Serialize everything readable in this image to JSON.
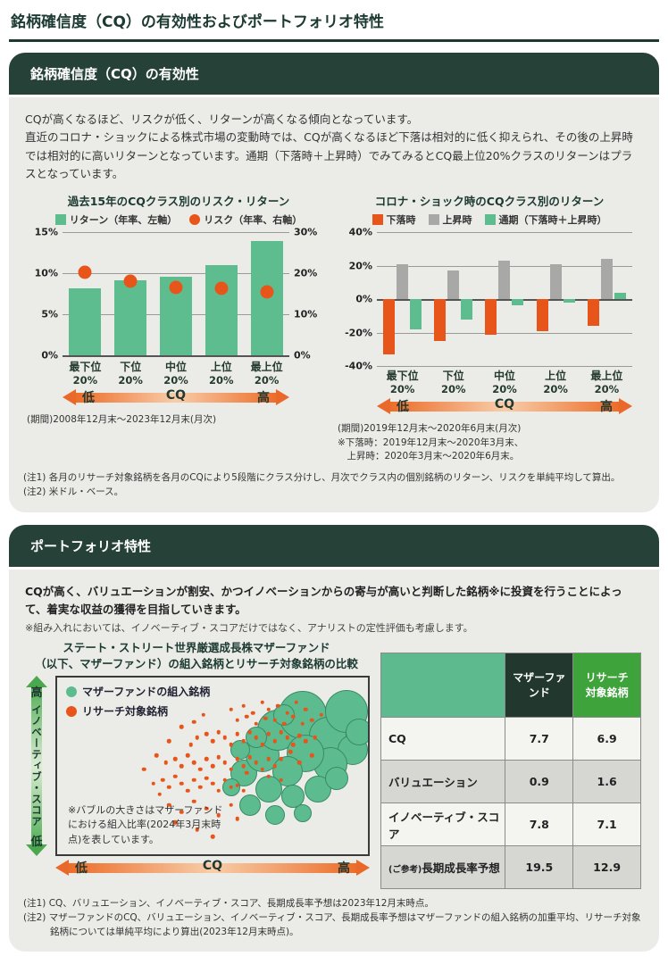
{
  "doc_title": "銘柄確信度（CQ）の有効性およびポートフォリオ特性",
  "colors": {
    "dark_green": "#264238",
    "title_green": "#1c3a31",
    "body_gray": "#ebece8",
    "bar_green": "#5dbd8e",
    "orange": "#e8551a",
    "bar_gray": "#a8a8a6",
    "table_head_left": "#5cba8e",
    "table_head_dark": "#22382e",
    "table_head_bright": "#3fa33c"
  },
  "cq_arrow": {
    "low": "低",
    "center": "CQ",
    "high": "高"
  },
  "innov_axis": {
    "high": "高",
    "label": "イノベーティブ・スコア",
    "low": "低"
  },
  "section1": {
    "header": "銘柄確信度（CQ）の有効性",
    "intro": "CQが高くなるほど、リスクが低く、リターンが高くなる傾向となっています。\n直近のコロナ・ショックによる株式市場の変動時では、CQが高くなるほど下落は相対的に低く抑えられ、その後の上昇時では相対的に高いリターンとなっています。通期（下落時＋上昇時）でみてみるとCQ最上位20%クラスのリターンはプラスとなっています。",
    "note1": "(注1) 各月のリサーチ対象銘柄を各月のCQにより5段階にクラス分けし、月次でクラス内の個別銘柄のリターン、リスクを単純平均して算出。",
    "note2": "(注2) 米ドル・ベース。"
  },
  "section2": {
    "header": "ポートフォリオ特性",
    "intro": "CQが高く、バリュエーションが割安、かつイノベーションからの寄与が高いと判断した銘柄※に投資を行うことによって、着実な収益の獲得を目指していきます。",
    "subnote": "※組み入れにおいては、イノベーティブ・スコアだけではなく、アナリストの定性評価も考慮します。",
    "note1": "(注1) CQ、バリュエーション、イノベーティブ・スコア、長期成長率予想は2023年12月末時点。",
    "note2": "(注2) マザーファンドのCQ、バリュエーション、イノベーティブ・スコア、長期成長率予想はマザーファンドの組入銘柄の加重平均、リサーチ対象銘柄については単純平均により算出(2023年12月末時点)。"
  },
  "table": {
    "col_headers": [
      "マザーファンド",
      "リサーチ\n対象銘柄"
    ],
    "rows": [
      {
        "label_prefix": "",
        "label": "CQ",
        "values": [
          "7.7",
          "6.9"
        ]
      },
      {
        "label_prefix": "",
        "label": "バリュエーション",
        "values": [
          "0.9",
          "1.6"
        ]
      },
      {
        "label_prefix": "",
        "label": "イノベーティブ・スコア",
        "values": [
          "7.8",
          "7.1"
        ]
      },
      {
        "label_prefix": "(ご参考)",
        "label": "長期成長率予想",
        "values": [
          "19.5",
          "12.9"
        ]
      }
    ]
  },
  "chart_data": [
    {
      "id": "risk_return_by_cq",
      "type": "bar",
      "title": "過去15年のCQクラス別のリスク・リターン",
      "categories": [
        [
          "最下位",
          "20%"
        ],
        [
          "下位",
          "20%"
        ],
        [
          "中位",
          "20%"
        ],
        [
          "上位",
          "20%"
        ],
        [
          "最上位",
          "20%"
        ]
      ],
      "series": [
        {
          "name": "リターン（年率、左軸）",
          "mark": "bar",
          "color": "#5dbd8e",
          "axis": "left",
          "values": [
            8.2,
            9.1,
            9.6,
            11.0,
            13.9
          ]
        },
        {
          "name": "リスク（年率、右軸）",
          "mark": "dot",
          "color": "#e8551a",
          "axis": "right",
          "values": [
            20.2,
            18.0,
            16.6,
            16.3,
            15.4
          ]
        }
      ],
      "left_axis": {
        "ticks": [
          "15%",
          "10%",
          "5%",
          "0%"
        ],
        "max": 15,
        "min": 0
      },
      "right_axis": {
        "ticks": [
          "30%",
          "20%",
          "10%",
          "0%"
        ],
        "max": 30,
        "min": 0
      },
      "period_note": "(期間)2008年12月末～2023年12月末(月次)"
    },
    {
      "id": "covid_returns_by_cq",
      "type": "bar",
      "title": "コロナ・ショック時のCQクラス別のリターン",
      "categories": [
        [
          "最下位",
          "20%"
        ],
        [
          "下位",
          "20%"
        ],
        [
          "中位",
          "20%"
        ],
        [
          "上位",
          "20%"
        ],
        [
          "最上位",
          "20%"
        ]
      ],
      "series": [
        {
          "name": "下落時",
          "color": "#e8551a",
          "values": [
            -33,
            -25,
            -21.5,
            -19,
            -16
          ]
        },
        {
          "name": "上昇時",
          "color": "#a8a8a6",
          "values": [
            21,
            17,
            23,
            21,
            24
          ]
        },
        {
          "name": "通期（下落時＋上昇時）",
          "color": "#5dbd8e",
          "values": [
            -18,
            -12.5,
            -3.5,
            -2,
            3.5
          ]
        }
      ],
      "y_axis": {
        "ticks": [
          "40%",
          "20%",
          "0%",
          "-20%",
          "-40%"
        ],
        "max": 40,
        "min": -40
      },
      "period_note": "(期間)2019年12月末～2020年6月末(月次)\n※下落時：2019年12月末～2020年3月末、\n　上昇時：2020年3月末～2020年6月末。"
    },
    {
      "id": "mother_fund_bubble_scatter",
      "type": "scatter",
      "title_lines": [
        "ステート・ストリート世界厳選成長株マザーファンド",
        "（以下、マザーファンド）の組入銘柄とリサーチ対象銘柄の比較"
      ],
      "legend": [
        {
          "label": "マザーファンドの組入銘柄",
          "color": "#5cbc90"
        },
        {
          "label": "リサーチ対象銘柄",
          "color": "#e8551a"
        }
      ],
      "annotation": "※バブルの大きさはマザーファンドにおける組入比率(2024年3月末時点)を表しています。",
      "x_axis": {
        "low": "低",
        "label": "CQ",
        "high": "高"
      },
      "y_axis": {
        "high": "高",
        "label": "イノベーティブ・スコア",
        "low": "低"
      },
      "bubbles": [
        [
          60,
          54,
          15
        ],
        [
          66,
          44,
          19
        ],
        [
          71,
          30,
          23
        ],
        [
          79,
          21,
          27
        ],
        [
          87,
          33,
          21
        ],
        [
          93,
          19,
          24
        ],
        [
          95,
          41,
          17
        ],
        [
          88,
          49,
          19
        ],
        [
          80,
          43,
          21
        ],
        [
          74,
          53,
          17
        ],
        [
          68,
          63,
          15
        ],
        [
          76,
          67,
          13
        ],
        [
          84,
          63,
          15
        ],
        [
          90,
          57,
          13
        ],
        [
          62,
          72,
          12
        ],
        [
          70,
          78,
          11
        ],
        [
          79,
          77,
          10
        ],
        [
          56,
          62,
          10
        ],
        [
          59,
          41,
          11
        ],
        [
          73,
          21,
          12
        ],
        [
          97,
          31,
          15
        ],
        [
          64,
          34,
          12
        ]
      ],
      "dots": [
        [
          56,
          18
        ],
        [
          60,
          16
        ],
        [
          63,
          20
        ],
        [
          66,
          14
        ],
        [
          68,
          18
        ],
        [
          71,
          16
        ],
        [
          74,
          20
        ],
        [
          77,
          14
        ],
        [
          80,
          18
        ],
        [
          47,
          21
        ],
        [
          58,
          24
        ],
        [
          61,
          22
        ],
        [
          64,
          26
        ],
        [
          67,
          23
        ],
        [
          70,
          24
        ],
        [
          73,
          26
        ],
        [
          76,
          22
        ],
        [
          79,
          26
        ],
        [
          82,
          24
        ],
        [
          85,
          21
        ],
        [
          45,
          34
        ],
        [
          48,
          32
        ],
        [
          50,
          36
        ],
        [
          52,
          31
        ],
        [
          54,
          34
        ],
        [
          56,
          38
        ],
        [
          58,
          32
        ],
        [
          60,
          36
        ],
        [
          62,
          31
        ],
        [
          64,
          34
        ],
        [
          66,
          38
        ],
        [
          68,
          32
        ],
        [
          70,
          36
        ],
        [
          72,
          31
        ],
        [
          74,
          34
        ],
        [
          76,
          38
        ],
        [
          78,
          33
        ],
        [
          43,
          38
        ],
        [
          80,
          36
        ],
        [
          83,
          34
        ],
        [
          38,
          46
        ],
        [
          40,
          50
        ],
        [
          42,
          44
        ],
        [
          44,
          48
        ],
        [
          46,
          52
        ],
        [
          48,
          46
        ],
        [
          50,
          50
        ],
        [
          52,
          45
        ],
        [
          54,
          48
        ],
        [
          56,
          52
        ],
        [
          58,
          46
        ],
        [
          60,
          50
        ],
        [
          62,
          45
        ],
        [
          64,
          48
        ],
        [
          66,
          52
        ],
        [
          68,
          46
        ],
        [
          70,
          50
        ],
        [
          35,
          48
        ],
        [
          72,
          46
        ],
        [
          61,
          54
        ],
        [
          34,
          58
        ],
        [
          36,
          62
        ],
        [
          38,
          56
        ],
        [
          40,
          60
        ],
        [
          42,
          64
        ],
        [
          44,
          58
        ],
        [
          46,
          62
        ],
        [
          48,
          57
        ],
        [
          50,
          60
        ],
        [
          52,
          64
        ],
        [
          54,
          58
        ],
        [
          56,
          62
        ],
        [
          58,
          61
        ],
        [
          31,
          60
        ],
        [
          60,
          64
        ],
        [
          33,
          66
        ],
        [
          36,
          72
        ],
        [
          40,
          76
        ],
        [
          44,
          70
        ],
        [
          48,
          74
        ],
        [
          52,
          78
        ],
        [
          56,
          72
        ],
        [
          38,
          82
        ],
        [
          45,
          86
        ],
        [
          58,
          80
        ],
        [
          50,
          90
        ],
        [
          40,
          28
        ],
        [
          36,
          36
        ],
        [
          32,
          44
        ],
        [
          28,
          52
        ],
        [
          44,
          25
        ],
        [
          75,
          42
        ],
        [
          78,
          48
        ],
        [
          82,
          44
        ],
        [
          72,
          58
        ],
        [
          68,
          56
        ]
      ]
    }
  ]
}
